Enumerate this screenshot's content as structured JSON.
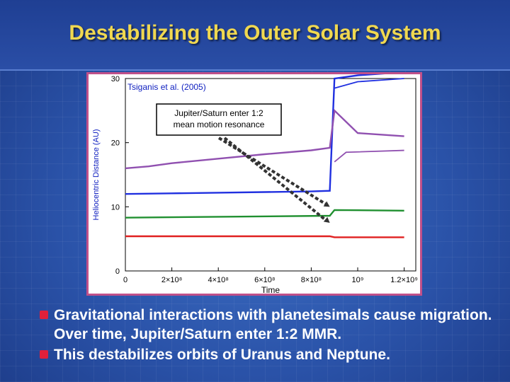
{
  "slide": {
    "title": "Destabilizing the Outer Solar System"
  },
  "figure": {
    "citation": "Tsiganis et al. (2005)",
    "annotation_line1": "Jupiter/Saturn enter 1:2",
    "annotation_line2": "mean motion resonance"
  },
  "chart_data": {
    "type": "line",
    "ylabel": "Heliocentric Distance (AU)",
    "xlabel": "Time",
    "xlim": [
      0,
      1250000000.0
    ],
    "ylim": [
      0,
      30
    ],
    "x_tick_labels": [
      "0",
      "2×10⁸",
      "4×10⁸",
      "6×10⁸",
      "8×10⁸",
      "10⁹",
      "1.2×10⁹"
    ],
    "x_ticks": [
      0,
      200000000.0,
      400000000.0,
      600000000.0,
      800000000.0,
      1000000000.0,
      1200000000.0
    ],
    "y_ticks": [
      0,
      10,
      20,
      30
    ],
    "y_tick_labels": [
      "0",
      "10",
      "20",
      "30"
    ],
    "resonance_time": 880000000.0,
    "series": [
      {
        "color": "#e02020",
        "x": [
          0,
          880000000.0,
          900000000.0,
          1200000000.0
        ],
        "y": [
          5.4,
          5.4,
          5.25,
          5.25
        ]
      },
      {
        "color": "#209030",
        "x": [
          0,
          880000000.0,
          900000000.0,
          1200000000.0
        ],
        "y": [
          8.3,
          8.6,
          9.5,
          9.4
        ]
      },
      {
        "color": "#2030e0",
        "x": [
          0,
          200000000.0,
          400000000.0,
          600000000.0,
          800000000.0,
          880000000.0,
          900000000.0,
          1000000000.0,
          1200000000.0
        ],
        "y": [
          12.0,
          12.1,
          12.2,
          12.3,
          12.4,
          12.5,
          30,
          30.5,
          31
        ]
      },
      {
        "color": "#9050b0",
        "x": [
          0,
          100000000.0,
          200000000.0,
          400000000.0,
          600000000.0,
          800000000.0,
          880000000.0,
          900000000.0,
          1000000000.0,
          1200000000.0
        ],
        "y": [
          16.0,
          16.3,
          16.8,
          17.5,
          18.2,
          18.8,
          19.2,
          25,
          21.5,
          21.0
        ]
      }
    ],
    "arrow_targets_y": [
      10,
      7.5
    ]
  },
  "bullets": [
    "Gravitational interactions with planetesimals cause migration.  Over time, Jupiter/Saturn enter 1:2 MMR.",
    "This destabilizes orbits of Uranus and Neptune."
  ],
  "colors": {
    "title": "#f0d850",
    "bullet_marker": "#e0203a",
    "frame_border": "#c0508a"
  }
}
